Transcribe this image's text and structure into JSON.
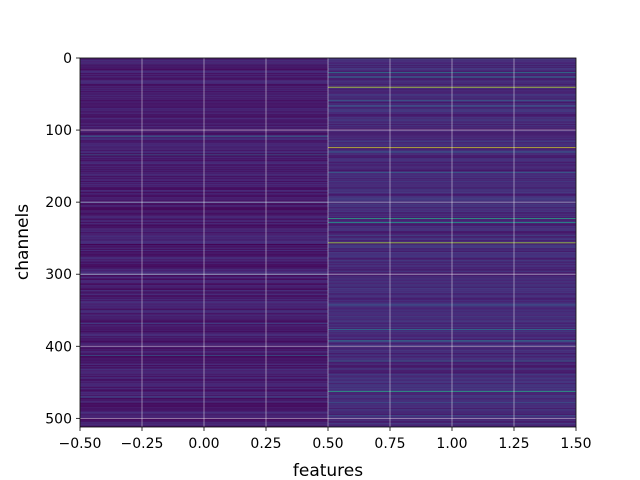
{
  "chart_data": {
    "type": "heatmap",
    "title": "",
    "xlabel": "features",
    "ylabel": "channels",
    "xlim": [
      -0.5,
      1.5
    ],
    "ylim": [
      512,
      0
    ],
    "y_inverted": true,
    "n_columns": 2,
    "n_rows": 512,
    "colormap": "viridis",
    "grid": true,
    "legend": "none",
    "xticks": [
      "−0.50",
      "−0.25",
      "0.00",
      "0.25",
      "0.50",
      "0.75",
      "1.00",
      "1.25",
      "1.50"
    ],
    "xtick_values": [
      -0.5,
      -0.25,
      0.0,
      0.25,
      0.5,
      0.75,
      1.0,
      1.25,
      1.5
    ],
    "yticks": [
      "0",
      "100",
      "200",
      "300",
      "400",
      "500"
    ],
    "ytick_values": [
      0,
      100,
      200,
      300,
      400,
      500
    ],
    "column_baseline": [
      0.08,
      0.12
    ],
    "highlights": [
      {
        "column": 0,
        "channel": 108,
        "value": 0.35
      },
      {
        "column": 0,
        "channel": 134,
        "value": 0.3
      },
      {
        "column": 0,
        "channel": 200,
        "value": 0.22
      },
      {
        "column": 0,
        "channel": 258,
        "value": 0.0
      },
      {
        "column": 0,
        "channel": 300,
        "value": 0.22
      },
      {
        "column": 0,
        "channel": 368,
        "value": 0.2
      },
      {
        "column": 0,
        "channel": 412,
        "value": 0.3
      },
      {
        "column": 0,
        "channel": 470,
        "value": 0.25
      },
      {
        "column": 1,
        "channel": 20,
        "value": 0.45
      },
      {
        "column": 1,
        "channel": 26,
        "value": 0.4
      },
      {
        "column": 1,
        "channel": 40,
        "value": 0.9
      },
      {
        "column": 1,
        "channel": 58,
        "value": 0.35
      },
      {
        "column": 1,
        "channel": 66,
        "value": 0.3
      },
      {
        "column": 1,
        "channel": 124,
        "value": 0.95
      },
      {
        "column": 1,
        "channel": 130,
        "value": 0.35
      },
      {
        "column": 1,
        "channel": 158,
        "value": 0.35
      },
      {
        "column": 1,
        "channel": 222,
        "value": 0.6
      },
      {
        "column": 1,
        "channel": 228,
        "value": 0.55
      },
      {
        "column": 1,
        "channel": 256,
        "value": 0.88
      },
      {
        "column": 1,
        "channel": 342,
        "value": 0.3
      },
      {
        "column": 1,
        "channel": 376,
        "value": 0.4
      },
      {
        "column": 1,
        "channel": 392,
        "value": 0.45
      },
      {
        "column": 1,
        "channel": 420,
        "value": 0.35
      },
      {
        "column": 1,
        "channel": 462,
        "value": 0.6
      },
      {
        "column": 1,
        "channel": 478,
        "value": 0.3
      },
      {
        "column": 1,
        "channel": 496,
        "value": 0.3
      }
    ]
  }
}
